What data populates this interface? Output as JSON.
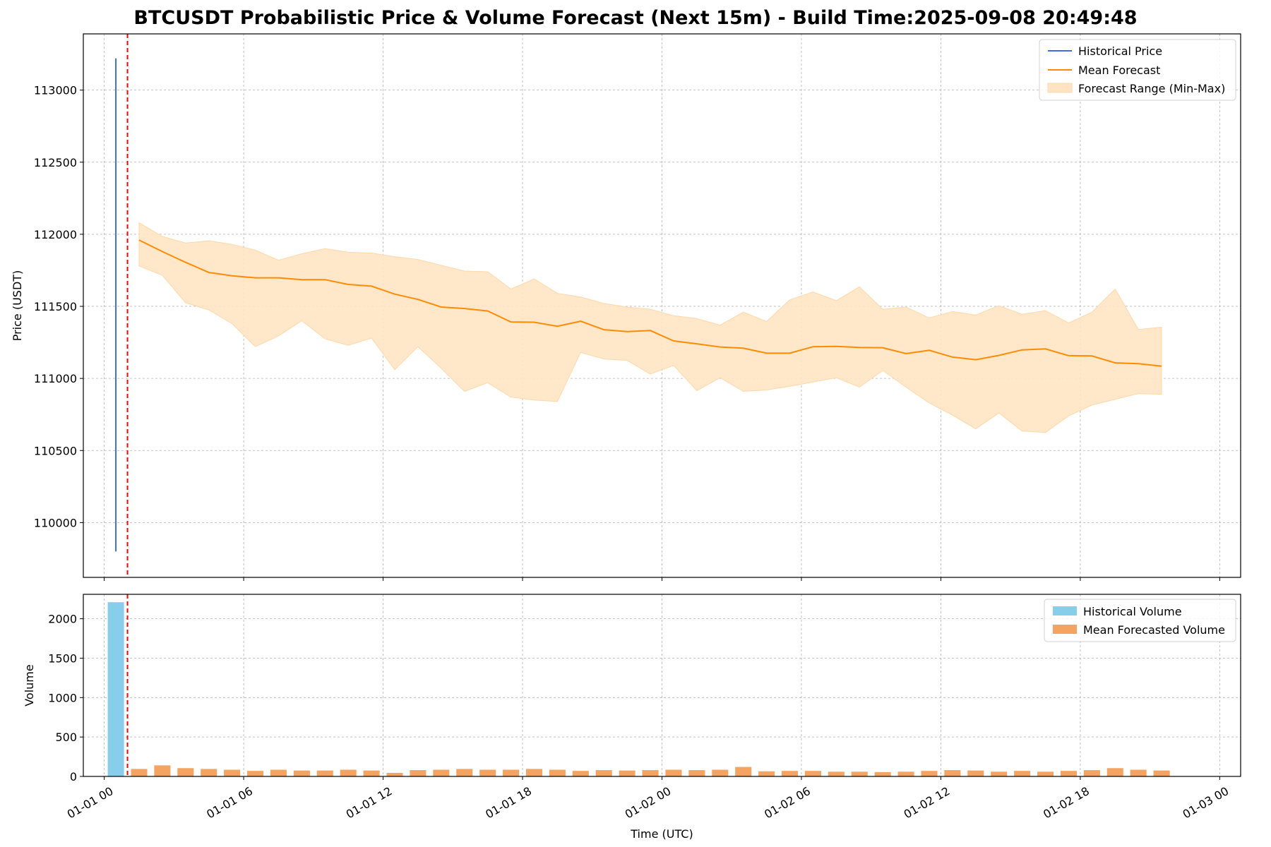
{
  "chart_data": [
    {
      "type": "line",
      "title": "BTCUSDT Probabilistic Price & Volume Forecast (Next 15m) - Build Time:2025-09-08 20:49:48",
      "xlabel": "",
      "ylabel": "Price (USDT)",
      "ylim": [
        109620,
        113390
      ],
      "xlim_hours": [
        -0.9,
        48.9
      ],
      "grid": true,
      "legend_position": "upper-right",
      "x_ticks": [
        {
          "hour": 0,
          "label": "01-01 00"
        },
        {
          "hour": 6,
          "label": "01-01 06"
        },
        {
          "hour": 12,
          "label": "01-01 12"
        },
        {
          "hour": 18,
          "label": "01-01 18"
        },
        {
          "hour": 24,
          "label": "01-02 00"
        },
        {
          "hour": 30,
          "label": "01-02 06"
        },
        {
          "hour": 36,
          "label": "01-02 12"
        },
        {
          "hour": 42,
          "label": "01-02 18"
        },
        {
          "hour": 48,
          "label": "01-03 00"
        }
      ],
      "y_ticks": [
        110000,
        110500,
        111000,
        111500,
        112000,
        112500,
        113000
      ],
      "historical_price": {
        "name": "Historical Price",
        "color": "#4169e1",
        "x": [
          0.5,
          0.5
        ],
        "y": [
          109800,
          113220
        ]
      },
      "forecast_start_line": {
        "x": 1.0,
        "color": "#ff0000",
        "style": "dashed"
      },
      "mean_forecast": {
        "name": "Mean Forecast",
        "color": "#ff8c00",
        "x": [
          1.5,
          2.5,
          3.5,
          4.5,
          5.5,
          6.5,
          7.5,
          8.5,
          9.5,
          10.5,
          11.5,
          12.5,
          13.5,
          14.5,
          15.5,
          16.5,
          17.5,
          18.5,
          19.5,
          20.5,
          21.5,
          22.5,
          23.5,
          24.5,
          25.5,
          26.5,
          27.5,
          28.5,
          29.5,
          30.5,
          31.5,
          32.5,
          33.5,
          34.5,
          35.5,
          36.5,
          37.5,
          38.5,
          39.5,
          40.5,
          41.5,
          42.5,
          43.5,
          44.5,
          45.5
        ],
        "y": [
          111960,
          111880,
          111805,
          111735,
          111712,
          111698,
          111698,
          111685,
          111685,
          111652,
          111640,
          111585,
          111548,
          111495,
          111485,
          111468,
          111392,
          111390,
          111362,
          111397,
          111338,
          111325,
          111332,
          111260,
          111240,
          111218,
          111210,
          111175,
          111175,
          111220,
          111222,
          111215,
          111213,
          111172,
          111195,
          111148,
          111130,
          111160,
          111198,
          111205,
          111158,
          111156,
          111108,
          111102,
          111085
        ]
      },
      "forecast_range": {
        "name": "Forecast Range (Min-Max)",
        "color": "#ffe4c4",
        "upper": [
          112080,
          111985,
          111940,
          111955,
          111930,
          111890,
          111820,
          111865,
          111900,
          111875,
          111870,
          111845,
          111825,
          111785,
          111745,
          111740,
          111620,
          111690,
          111590,
          111565,
          111520,
          111495,
          111480,
          111435,
          111415,
          111370,
          111460,
          111395,
          111545,
          111600,
          111540,
          111635,
          111480,
          111495,
          111420,
          111465,
          111440,
          111505,
          111445,
          111470,
          111385,
          111460,
          111620,
          111340,
          111355
        ],
        "lower": [
          111780,
          111715,
          111525,
          111475,
          111380,
          111220,
          111295,
          111400,
          111275,
          111230,
          111280,
          111060,
          111220,
          111070,
          110910,
          110970,
          110870,
          110850,
          110840,
          111180,
          111135,
          111125,
          111030,
          111090,
          110915,
          111005,
          110910,
          110920,
          110945,
          110975,
          111005,
          110940,
          111055,
          110940,
          110830,
          110745,
          110650,
          110760,
          110635,
          110625,
          110740,
          110815,
          110855,
          110895,
          110890
        ]
      }
    },
    {
      "type": "bar",
      "xlabel": "Time (UTC)",
      "ylabel": "Volume",
      "ylim": [
        0,
        2310
      ],
      "grid": true,
      "legend_position": "upper-right",
      "y_ticks": [
        0,
        500,
        1000,
        1500,
        2000
      ],
      "historical_volume": {
        "name": "Historical Volume",
        "color": "#87ceeb",
        "x": [
          0.5
        ],
        "values": [
          2210
        ]
      },
      "mean_forecast_volume": {
        "name": "Mean Forecasted Volume",
        "color": "#f4a460",
        "x": [
          1.5,
          2.5,
          3.5,
          4.5,
          5.5,
          6.5,
          7.5,
          8.5,
          9.5,
          10.5,
          11.5,
          12.5,
          13.5,
          14.5,
          15.5,
          16.5,
          17.5,
          18.5,
          19.5,
          20.5,
          21.5,
          22.5,
          23.5,
          24.5,
          25.5,
          26.5,
          27.5,
          28.5,
          29.5,
          30.5,
          31.5,
          32.5,
          33.5,
          34.5,
          35.5,
          36.5,
          37.5,
          38.5,
          39.5,
          40.5,
          41.5,
          42.5,
          43.5,
          44.5,
          45.5
        ],
        "values": [
          95,
          140,
          105,
          95,
          85,
          70,
          85,
          75,
          75,
          85,
          75,
          45,
          80,
          85,
          95,
          85,
          85,
          95,
          85,
          70,
          80,
          75,
          80,
          85,
          80,
          85,
          120,
          65,
          70,
          70,
          60,
          60,
          55,
          60,
          70,
          80,
          75,
          60,
          70,
          60,
          70,
          80,
          105,
          85,
          75
        ]
      }
    }
  ]
}
